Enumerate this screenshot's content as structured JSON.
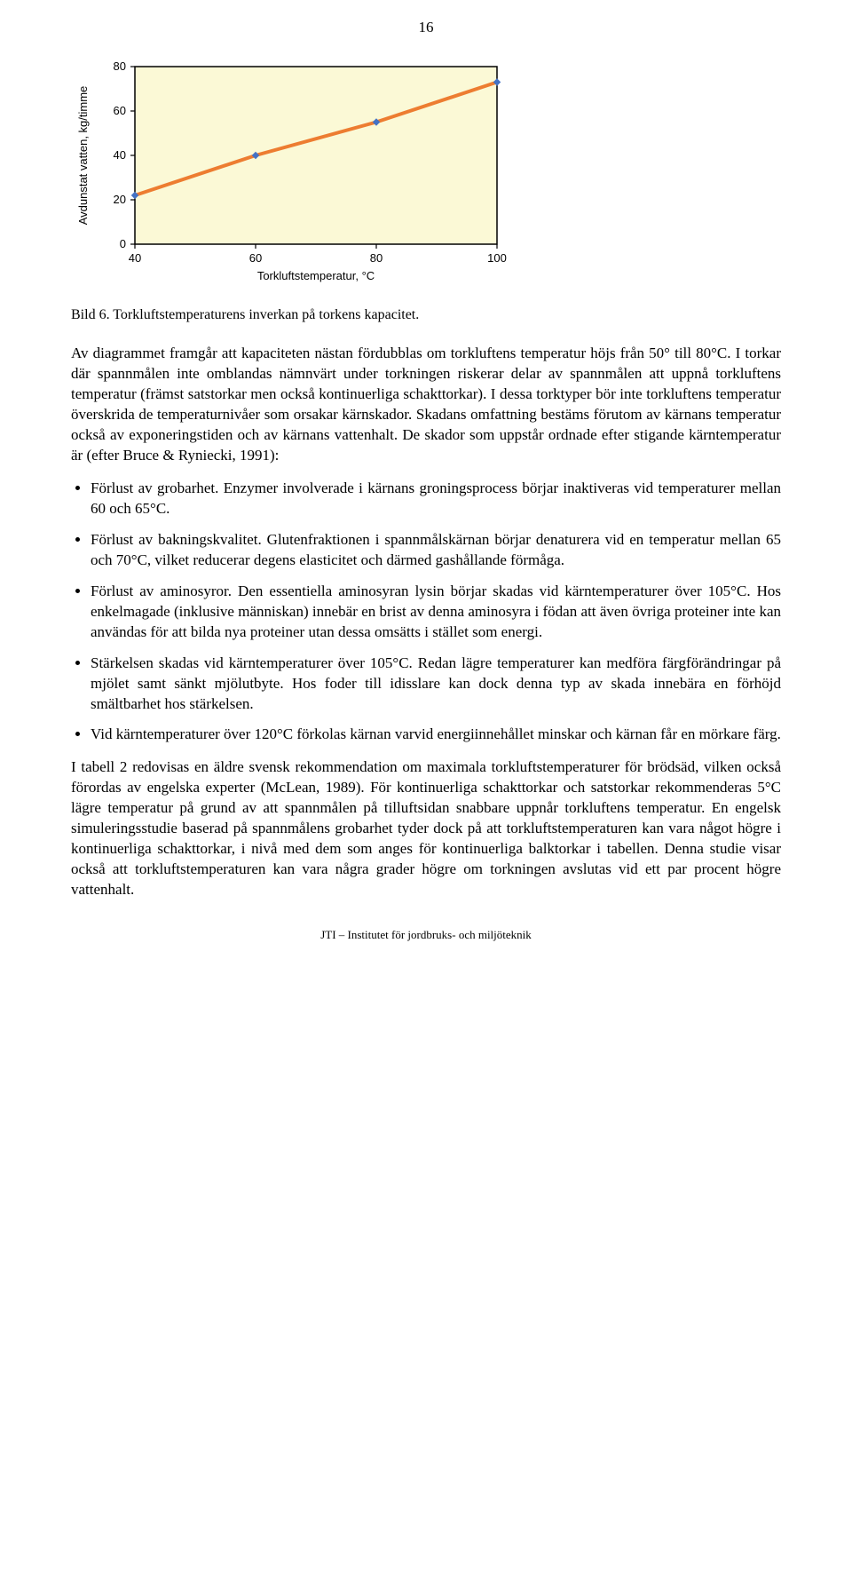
{
  "page_number": "16",
  "chart": {
    "type": "line",
    "plot_bg": "#fbf9d6",
    "series_color": "#ed7d31",
    "marker_color": "#4472c4",
    "x_values": [
      40,
      60,
      80,
      100
    ],
    "y_values": [
      22,
      40,
      55,
      73
    ],
    "x_ticks": [
      40,
      60,
      80,
      100
    ],
    "y_ticks": [
      0,
      20,
      40,
      60,
      80
    ],
    "xlim": [
      40,
      100
    ],
    "ylim": [
      0,
      80
    ],
    "xlabel": "Torkluftstemperatur, °C",
    "ylabel": "Avdunstat vatten, kg/timme",
    "axis_color": "#000000",
    "tick_fontsize": 13,
    "label_fontsize": 13,
    "line_width": 4,
    "marker_size": 3
  },
  "caption": "Bild 6. Torkluftstemperaturens inverkan på torkens kapacitet.",
  "para1": "Av diagrammet framgår att kapaciteten nästan fördubblas om torkluftens temperatur höjs från 50° till 80°C. I torkar där spannmålen inte omblandas nämnvärt under torkningen riskerar delar av spannmålen att uppnå torkluftens temperatur (främst satstorkar men också kontinuerliga schakttorkar). I dessa torktyper bör inte torkluftens temperatur överskrida de temperaturnivåer som orsakar kärnskador. Skadans omfattning bestäms förutom av kärnans temperatur också av exponeringstiden och av kärnans vattenhalt. De skador som uppstår ordnade efter stigande kärntemperatur är (efter Bruce & Ryniecki, 1991):",
  "bullets": [
    "Förlust av grobarhet. Enzymer involverade i kärnans groningsprocess börjar inaktiveras vid temperaturer mellan 60 och 65°C.",
    "Förlust av bakningskvalitet. Glutenfraktionen i spannmålskärnan börjar denaturera vid en temperatur mellan 65 och 70°C, vilket reducerar degens elasticitet och därmed gashållande förmåga.",
    "Förlust av aminosyror. Den essentiella aminosyran lysin börjar skadas vid kärntemperaturer över 105°C. Hos enkelmagade (inklusive människan) innebär en brist av denna aminosyra i födan att även övriga proteiner inte kan användas för att bilda nya proteiner utan dessa omsätts i stället som energi.",
    "Stärkelsen skadas vid kärntemperaturer över 105°C. Redan lägre temperaturer kan medföra färgförändringar på mjölet samt sänkt mjölutbyte. Hos foder till idisslare kan dock denna typ av skada innebära en förhöjd smältbarhet hos stärkelsen.",
    "Vid kärntemperaturer över 120°C förkolas kärnan varvid energiinnehållet minskar och kärnan får en mörkare färg."
  ],
  "para2": "I tabell 2 redovisas en äldre svensk rekommendation om maximala torkluftstemperaturer för brödsäd, vilken också förordas av engelska experter (McLean, 1989). För kontinuerliga schakttorkar och satstorkar rekommenderas 5°C lägre temperatur på grund av att spannmålen på tilluftsidan snabbare uppnår torkluftens temperatur. En engelsk simuleringsstudie baserad på spannmålens grobarhet tyder dock på att torkluftstemperaturen kan vara något högre i kontinuerliga schakttorkar, i nivå med dem som anges för kontinuerliga balktorkar i tabellen. Denna studie visar också att torkluftstemperaturen kan vara några grader högre om torkningen avslutas vid ett par procent högre vattenhalt.",
  "footer": "JTI – Institutet för jordbruks- och miljöteknik"
}
